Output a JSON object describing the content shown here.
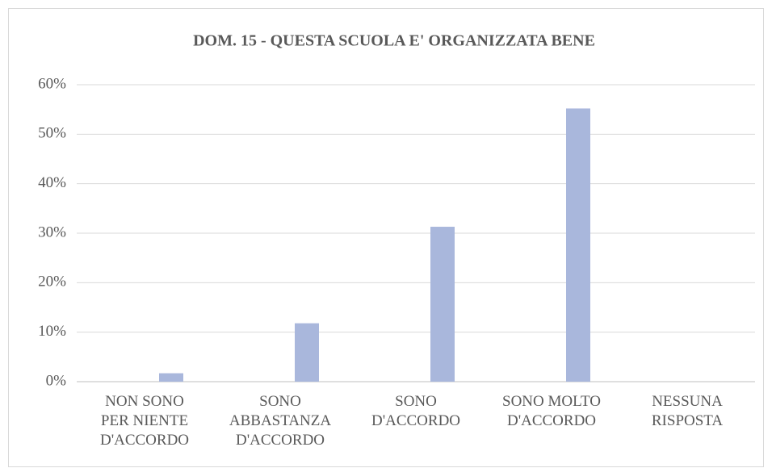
{
  "chart_data": {
    "type": "bar",
    "title": "DOM. 15 - QUESTA SCUOLA E' ORGANIZZATA BENE",
    "categories": [
      "NON SONO\nPER NIENTE\nD'ACCORDO",
      "SONO\nABBASTANZA\nD'ACCORDO",
      "SONO\nD'ACCORDO",
      "SONO MOLTO\nD'ACCORDO",
      "NESSUNA\nRISPOSTA"
    ],
    "values": [
      1.7,
      11.8,
      31.3,
      55.2,
      0
    ],
    "color": "#a9b7dc",
    "ylim": [
      0,
      60
    ],
    "yticks": [
      {
        "value": 0,
        "label": "0%"
      },
      {
        "value": 10,
        "label": "10%"
      },
      {
        "value": 20,
        "label": "20%"
      },
      {
        "value": 30,
        "label": "30%"
      },
      {
        "value": 40,
        "label": "40%"
      },
      {
        "value": 50,
        "label": "50%"
      },
      {
        "value": 60,
        "label": "60%"
      }
    ],
    "grid": true
  }
}
